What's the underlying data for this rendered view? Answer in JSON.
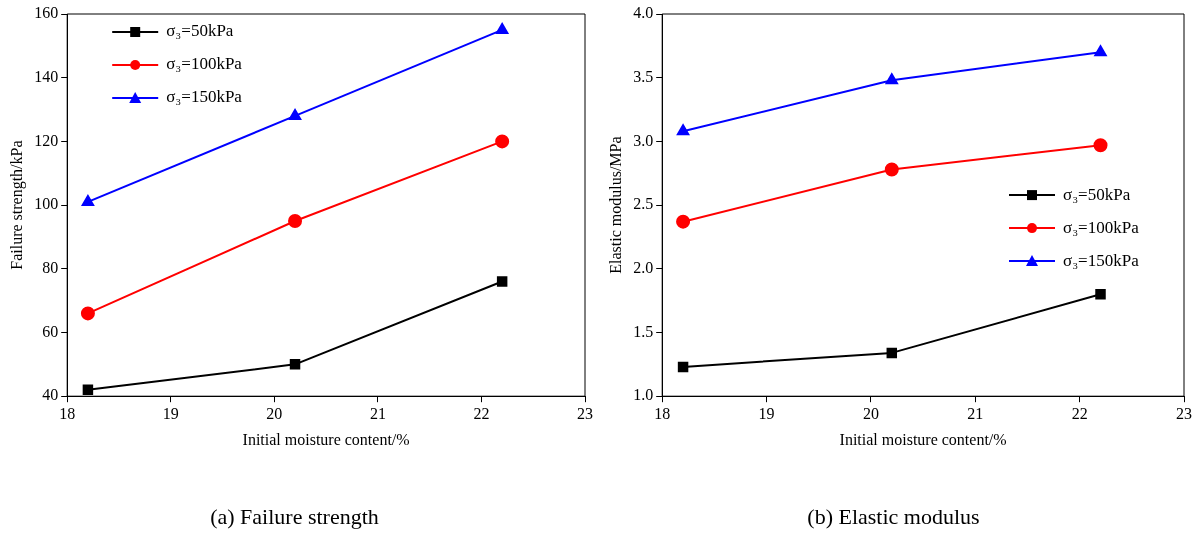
{
  "chart_data": [
    {
      "type": "line",
      "title": "(a) Failure strength",
      "xlabel": "Initial moisture content/%",
      "ylabel": "Failure strength/kPa",
      "x": [
        18.2,
        20.2,
        22.2
      ],
      "series": [
        {
          "name": "σ₃=50kPa",
          "color": "#000000",
          "marker": "square",
          "values": [
            42,
            50,
            76
          ]
        },
        {
          "name": "σ₃=100kPa",
          "color": "#ff0000",
          "marker": "circle",
          "values": [
            66,
            95,
            120
          ]
        },
        {
          "name": "σ₃=150kPa",
          "color": "#0000ff",
          "marker": "triangle",
          "values": [
            101,
            128,
            155
          ]
        }
      ],
      "xlim": [
        18,
        23
      ],
      "xticks": [
        18,
        19,
        20,
        21,
        22,
        23
      ],
      "ylim": [
        40,
        160
      ],
      "yticks": [
        40,
        60,
        80,
        100,
        120,
        140,
        160
      ],
      "legend": "top left"
    },
    {
      "type": "line",
      "title": "(b) Elastic modulus",
      "xlabel": "Initial moisture content/%",
      "ylabel": "Elastic modulus/MPa",
      "x": [
        18.2,
        20.2,
        22.2
      ],
      "series": [
        {
          "name": "σ₃=50kPa",
          "color": "#000000",
          "marker": "square",
          "values": [
            1.23,
            1.34,
            1.8
          ]
        },
        {
          "name": "σ₃=100kPa",
          "color": "#ff0000",
          "marker": "circle",
          "values": [
            2.37,
            2.78,
            2.97
          ]
        },
        {
          "name": "σ₃=150kPa",
          "color": "#0000ff",
          "marker": "triangle",
          "values": [
            3.08,
            3.48,
            3.7
          ]
        }
      ],
      "xlim": [
        18,
        23
      ],
      "xticks": [
        18,
        19,
        20,
        21,
        22,
        23
      ],
      "ylim": [
        1.0,
        4.0
      ],
      "yticks": [
        {
          "value": 1,
          "label": "1.0"
        },
        1.5,
        {
          "value": 2,
          "label": "2.0"
        },
        2.5,
        {
          "value": 3,
          "label": "3.0"
        },
        3.5,
        {
          "value": 4,
          "label": "4.0"
        }
      ],
      "legend": "right"
    }
  ]
}
